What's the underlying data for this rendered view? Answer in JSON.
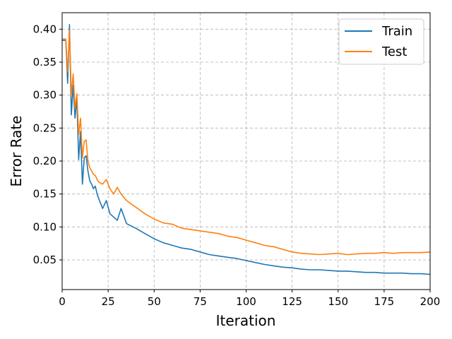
{
  "chart_data": {
    "type": "line",
    "xlabel": "Iteration",
    "ylabel": "Error Rate",
    "xlim": [
      0,
      200
    ],
    "ylim": [
      0.005,
      0.425
    ],
    "xticks": [
      0,
      25,
      50,
      75,
      100,
      125,
      150,
      175,
      200
    ],
    "yticks": [
      0.05,
      0.1,
      0.15,
      0.2,
      0.25,
      0.3,
      0.35,
      0.4
    ],
    "grid": true,
    "legend_position": "top-right",
    "series": [
      {
        "name": "Train",
        "color": "#1f77b4",
        "x": [
          0,
          1,
          2,
          3,
          4,
          5,
          6,
          7,
          8,
          9,
          10,
          11,
          12,
          13,
          14,
          15,
          16,
          17,
          18,
          19,
          20,
          22,
          24,
          26,
          28,
          30,
          32,
          35,
          40,
          45,
          50,
          55,
          60,
          65,
          70,
          75,
          80,
          85,
          90,
          95,
          100,
          105,
          110,
          115,
          120,
          125,
          130,
          135,
          140,
          145,
          150,
          155,
          160,
          165,
          170,
          175,
          180,
          185,
          190,
          195,
          200
        ],
        "y": [
          0.383,
          0.383,
          0.383,
          0.318,
          0.407,
          0.27,
          0.315,
          0.265,
          0.295,
          0.202,
          0.245,
          0.165,
          0.205,
          0.208,
          0.185,
          0.17,
          0.165,
          0.158,
          0.162,
          0.15,
          0.142,
          0.128,
          0.14,
          0.12,
          0.115,
          0.11,
          0.128,
          0.105,
          0.098,
          0.09,
          0.082,
          0.076,
          0.072,
          0.068,
          0.066,
          0.062,
          0.058,
          0.056,
          0.054,
          0.052,
          0.049,
          0.046,
          0.043,
          0.041,
          0.039,
          0.038,
          0.036,
          0.035,
          0.035,
          0.034,
          0.033,
          0.033,
          0.032,
          0.031,
          0.031,
          0.03,
          0.03,
          0.03,
          0.029,
          0.029,
          0.028
        ]
      },
      {
        "name": "Test",
        "color": "#ff7f0e",
        "x": [
          0,
          1,
          2,
          3,
          4,
          5,
          6,
          7,
          8,
          9,
          10,
          11,
          12,
          13,
          14,
          15,
          16,
          17,
          18,
          19,
          20,
          22,
          24,
          26,
          28,
          30,
          32,
          35,
          40,
          45,
          50,
          55,
          60,
          65,
          70,
          75,
          80,
          85,
          90,
          95,
          100,
          105,
          110,
          115,
          120,
          125,
          130,
          135,
          140,
          145,
          150,
          155,
          160,
          165,
          170,
          175,
          180,
          185,
          190,
          195,
          200
        ],
        "y": [
          0.385,
          0.385,
          0.385,
          0.335,
          0.398,
          0.3,
          0.332,
          0.28,
          0.302,
          0.24,
          0.265,
          0.205,
          0.23,
          0.232,
          0.2,
          0.19,
          0.185,
          0.18,
          0.178,
          0.172,
          0.168,
          0.165,
          0.172,
          0.158,
          0.15,
          0.16,
          0.15,
          0.14,
          0.13,
          0.12,
          0.112,
          0.106,
          0.104,
          0.098,
          0.096,
          0.094,
          0.092,
          0.09,
          0.086,
          0.084,
          0.08,
          0.076,
          0.072,
          0.07,
          0.066,
          0.062,
          0.06,
          0.059,
          0.058,
          0.059,
          0.06,
          0.058,
          0.059,
          0.06,
          0.06,
          0.061,
          0.06,
          0.061,
          0.061,
          0.061,
          0.062
        ]
      }
    ]
  }
}
